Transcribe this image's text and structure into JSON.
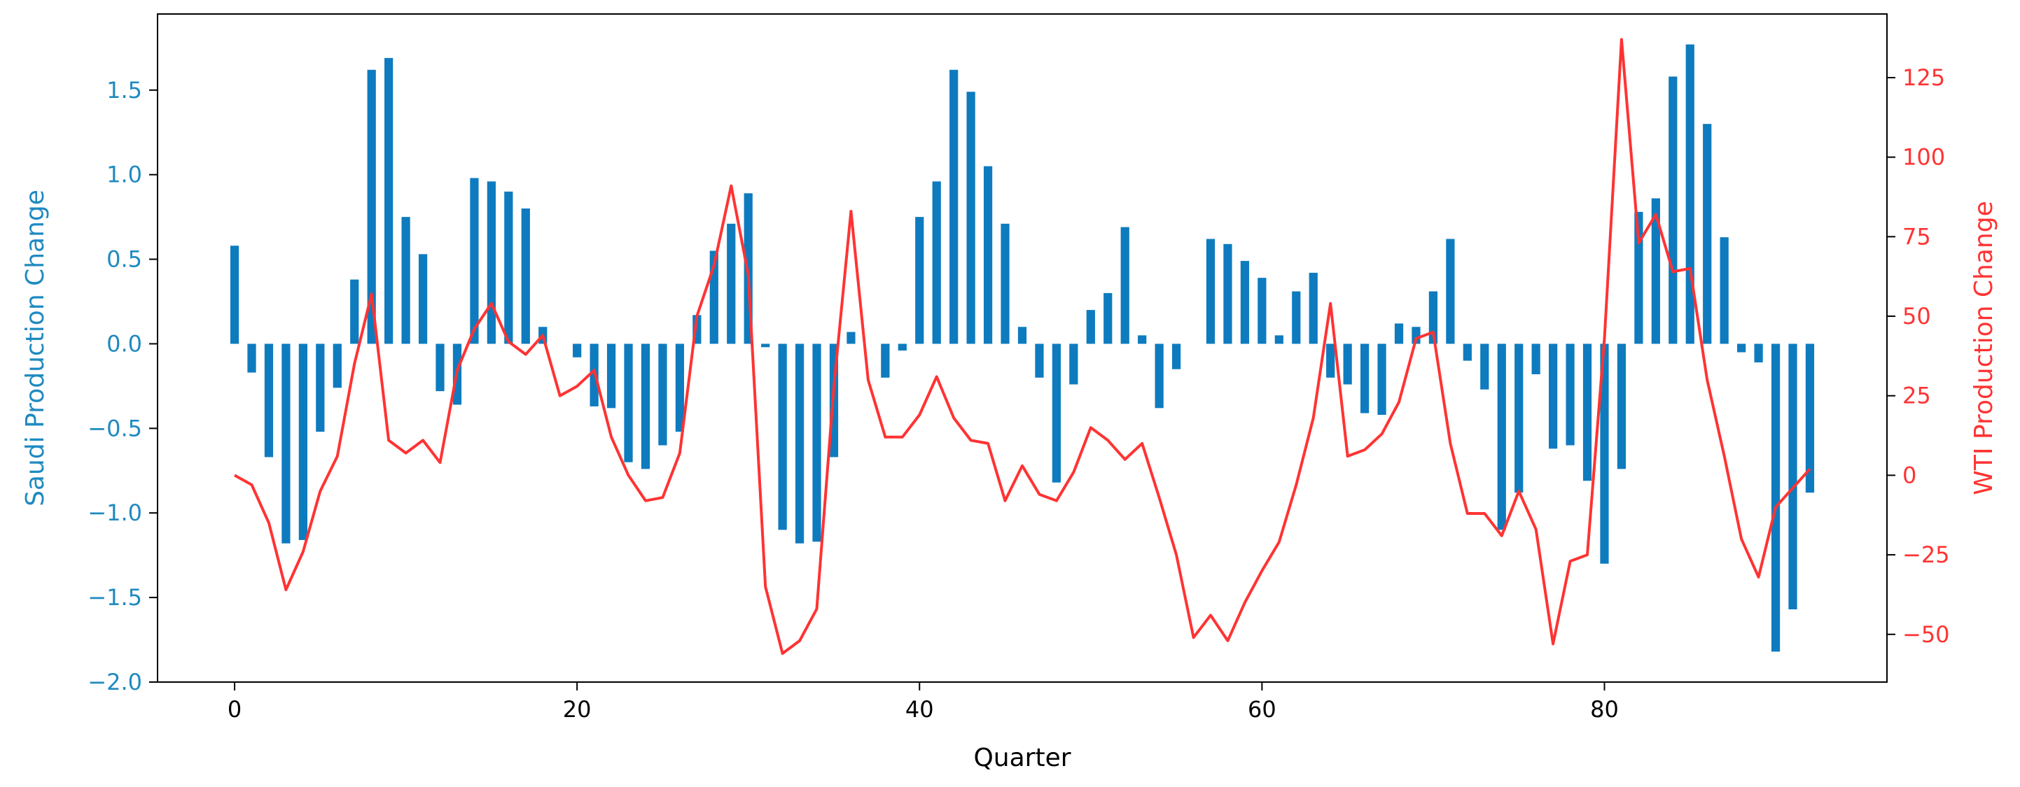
{
  "chart_data": {
    "type": "bar+line",
    "xlabel": "Quarter",
    "xlim": [
      -4.5,
      96.5
    ],
    "xticks": [
      0,
      20,
      40,
      60,
      80
    ],
    "left_axis": {
      "label": "Saudi Production Change",
      "color": "#1f8ac0",
      "ylim": [
        -2.0,
        1.95
      ],
      "ticks": [
        -2.0,
        -1.5,
        -1.0,
        -0.5,
        0.0,
        0.5,
        1.0,
        1.5
      ],
      "tick_labels": [
        "−2.0",
        "−1.5",
        "−1.0",
        "−0.5",
        "0.0",
        "0.5",
        "1.0",
        "1.5"
      ]
    },
    "right_axis": {
      "label": "WTI Production Change",
      "color": "#ff3333",
      "ylim": [
        -65,
        145
      ],
      "ticks": [
        -50,
        -25,
        0,
        25,
        50,
        75,
        100,
        125
      ],
      "tick_labels": [
        "−50",
        "−25",
        "0",
        "25",
        "50",
        "75",
        "100",
        "125"
      ]
    },
    "grid": false,
    "legend": "none",
    "series": [
      {
        "kind": "bar",
        "axis": "left",
        "color": "#0e7bbf",
        "x": [
          0,
          1,
          2,
          3,
          4,
          5,
          6,
          7,
          8,
          9,
          10,
          11,
          12,
          13,
          14,
          15,
          16,
          17,
          18,
          19,
          20,
          21,
          22,
          23,
          24,
          25,
          26,
          27,
          28,
          29,
          30,
          31,
          32,
          33,
          34,
          35,
          36,
          37,
          38,
          39,
          40,
          41,
          42,
          43,
          44,
          45,
          46,
          47,
          48,
          49,
          50,
          51,
          52,
          53,
          54,
          55,
          56,
          57,
          58,
          59,
          60,
          61,
          62,
          63,
          64,
          65,
          66,
          67,
          68,
          69,
          70,
          71,
          72,
          73,
          74,
          75,
          76,
          77,
          78,
          79,
          80,
          81,
          82,
          83,
          84,
          85,
          86,
          87,
          88,
          89,
          90,
          91,
          92
        ],
        "values": [
          0.58,
          -0.17,
          -0.67,
          -1.18,
          -1.16,
          -0.52,
          -0.26,
          0.38,
          1.62,
          1.69,
          0.75,
          0.53,
          -0.28,
          -0.36,
          0.98,
          0.96,
          0.9,
          0.8,
          0.1,
          0,
          -0.08,
          -0.37,
          -0.38,
          -0.7,
          -0.74,
          -0.6,
          -0.52,
          0.17,
          0.55,
          0.71,
          0.89,
          -0.02,
          -1.1,
          -1.18,
          -1.17,
          -0.67,
          0.07,
          0.0,
          -0.2,
          -0.04,
          0.75,
          0.96,
          1.62,
          1.49,
          1.05,
          0.71,
          0.1,
          -0.2,
          -0.82,
          -0.24,
          0.2,
          0.3,
          0.69,
          0.05,
          -0.38,
          -0.15,
          0,
          0.62,
          0.59,
          0.49,
          0.39,
          0.05,
          0.31,
          0.42,
          -0.2,
          -0.24,
          -0.41,
          -0.42,
          0.12,
          0.1,
          0.31,
          0.62,
          -0.1,
          -0.27,
          -1.1,
          -0.88,
          -0.18,
          -0.62,
          -0.6,
          -0.81,
          -1.3,
          -0.74,
          0.78,
          0.86,
          1.58,
          1.77,
          1.3,
          0.63,
          -0.05,
          -0.11,
          -1.82,
          -1.57,
          -0.88
        ]
      },
      {
        "kind": "line",
        "axis": "right",
        "color": "#ff3333",
        "x": [
          0,
          1,
          2,
          3,
          4,
          5,
          6,
          7,
          8,
          9,
          10,
          11,
          12,
          13,
          14,
          15,
          16,
          17,
          18,
          19,
          20,
          21,
          22,
          23,
          24,
          25,
          26,
          27,
          28,
          29,
          30,
          31,
          32,
          33,
          34,
          35,
          36,
          37,
          38,
          39,
          40,
          41,
          42,
          43,
          44,
          45,
          46,
          47,
          48,
          49,
          50,
          51,
          52,
          53,
          54,
          55,
          56,
          57,
          58,
          59,
          60,
          61,
          62,
          63,
          64,
          65,
          66,
          67,
          68,
          69,
          70,
          71,
          72,
          73,
          74,
          75,
          76,
          77,
          78,
          79,
          80,
          81,
          82,
          83,
          84,
          85,
          86,
          87,
          88,
          89,
          90,
          91,
          92
        ],
        "values": [
          0,
          -3,
          -15,
          -36,
          -24,
          -5,
          6,
          35,
          57,
          11,
          7,
          11,
          4,
          33,
          46,
          54,
          42,
          38,
          44,
          25,
          28,
          33,
          12,
          0,
          -8,
          -7,
          7,
          50,
          66,
          91,
          63,
          -35,
          -56,
          -52,
          -42,
          28,
          83,
          30,
          12,
          12,
          19,
          31,
          18,
          11,
          10,
          -8,
          3,
          -6,
          -8,
          1,
          15,
          11,
          5,
          10,
          -7,
          -25,
          -51,
          -44,
          -52,
          -40,
          -30,
          -21,
          -3,
          18,
          54,
          6,
          8,
          13,
          23,
          43,
          45,
          10,
          -12,
          -12,
          -19,
          -5,
          -17,
          -53,
          -27,
          -25,
          43,
          137,
          73,
          82,
          64,
          65,
          30,
          6,
          -20,
          -32,
          -10,
          -4,
          2
        ]
      }
    ]
  }
}
